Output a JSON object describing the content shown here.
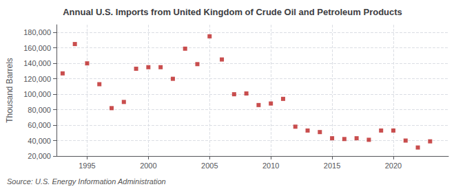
{
  "chart_data": {
    "type": "scatter",
    "title": "Annual U.S. Imports from United Kingdom of Crude Oil and Petroleum Products",
    "ylabel": "Thousand Barrels",
    "annotation": "Source: U.S. Energy Information Administration",
    "x": [
      1993,
      1994,
      1995,
      1996,
      1997,
      1998,
      1999,
      2000,
      2001,
      2002,
      2003,
      2004,
      2005,
      2006,
      2007,
      2008,
      2009,
      2010,
      2011,
      2012,
      2013,
      2014,
      2015,
      2016,
      2017,
      2018,
      2019,
      2020,
      2021,
      2022,
      2023
    ],
    "values": [
      127000,
      165000,
      140000,
      113000,
      82000,
      90000,
      133000,
      135000,
      135000,
      120000,
      159000,
      139000,
      175000,
      145000,
      100000,
      101000,
      86000,
      88000,
      94000,
      58000,
      53000,
      51000,
      43000,
      42000,
      43000,
      41000,
      53000,
      53000,
      40000,
      31000,
      39000
    ],
    "color": "#bb2222",
    "marker": "square",
    "xlim": [
      1992.5,
      2024.5
    ],
    "xticks": [
      1995,
      2000,
      2005,
      2010,
      2015,
      2020
    ],
    "ylim": [
      20000,
      190000
    ],
    "yticks": [
      {
        "value": 20000,
        "label": "20,000"
      },
      {
        "value": 40000,
        "label": "40,000"
      },
      {
        "value": 60000,
        "label": "60,000"
      },
      {
        "value": 80000,
        "label": "80,000"
      },
      {
        "value": 100000,
        "label": "100,000"
      },
      {
        "value": 120000,
        "label": "120,000"
      },
      {
        "value": 140000,
        "label": "140,000"
      },
      {
        "value": 160000,
        "label": "160,000"
      },
      {
        "value": 180000,
        "label": "180,000"
      }
    ],
    "grid": true
  }
}
